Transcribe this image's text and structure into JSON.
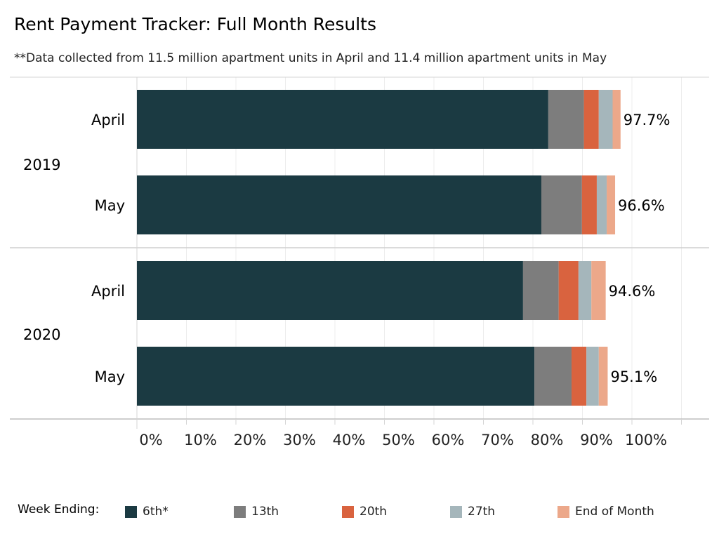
{
  "title": "Rent Payment Tracker: Full Month Results",
  "subtitle": "**Data collected from 11.5 million apartment units in April and 11.4 million apartment units in May",
  "legend": {
    "title": "Week Ending:",
    "items": [
      {
        "label": "6th*",
        "color": "#1b3a42"
      },
      {
        "label": "13th",
        "color": "#7d7d7d"
      },
      {
        "label": "20th",
        "color": "#d9633f"
      },
      {
        "label": "27th",
        "color": "#a5b6bb"
      },
      {
        "label": "End of Month",
        "color": "#eca88a"
      }
    ]
  },
  "chart_data": {
    "type": "bar",
    "orientation": "horizontal",
    "stacked": true,
    "groups": [
      {
        "name": "2019",
        "categories": [
          "April",
          "May"
        ]
      },
      {
        "name": "2020",
        "categories": [
          "April",
          "May"
        ]
      }
    ],
    "categories": [
      "April",
      "May",
      "April",
      "May"
    ],
    "series": [
      {
        "name": "6th*",
        "values": [
          83.1,
          81.7,
          78.0,
          80.3
        ]
      },
      {
        "name": "13th",
        "values": [
          7.2,
          8.2,
          7.2,
          7.5
        ]
      },
      {
        "name": "20th",
        "values": [
          3.0,
          3.0,
          4.0,
          3.0
        ]
      },
      {
        "name": "27th",
        "values": [
          2.8,
          2.0,
          2.6,
          2.5
        ]
      },
      {
        "name": "End of Month",
        "values": [
          1.6,
          1.7,
          2.9,
          1.8
        ]
      }
    ],
    "total_labels": [
      "97.7%",
      "96.6%",
      "94.6%",
      "95.1%"
    ],
    "x_ticks": [
      "0%",
      "10%",
      "20%",
      "30%",
      "40%",
      "50%",
      "60%",
      "70%",
      "80%",
      "90%",
      "100%"
    ],
    "xlim": [
      0,
      110
    ],
    "grid": true,
    "legend_position": "bottom"
  }
}
